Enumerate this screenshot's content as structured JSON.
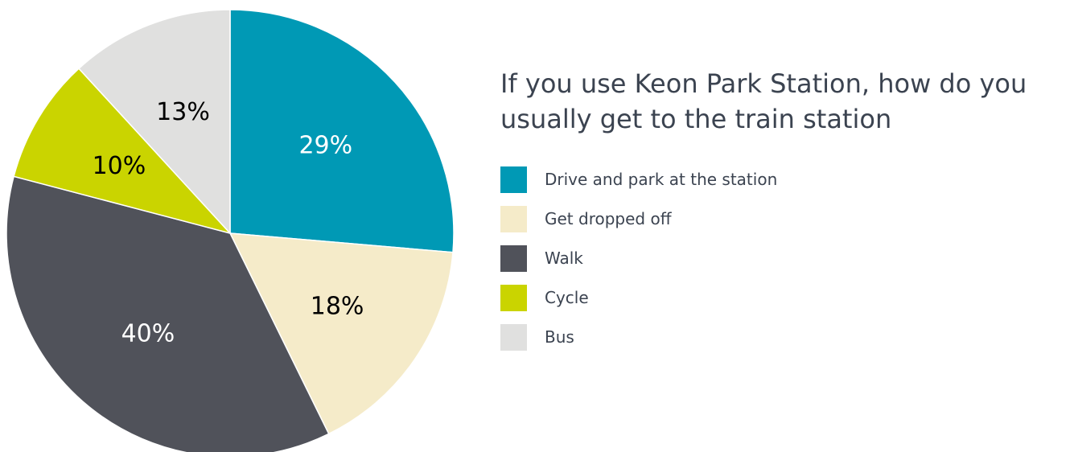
{
  "chart_data": {
    "type": "pie",
    "title": "If you use Keon Park Station, how do you usually get to the train station",
    "categories": [
      "Drive and park at the station",
      "Get dropped off",
      "Walk",
      "Cycle",
      "Bus"
    ],
    "values": [
      29,
      18,
      40,
      10,
      13
    ],
    "labels": [
      "29%",
      "18%",
      "40%",
      "10%",
      "13%"
    ],
    "colors": [
      "#0099b5",
      "#f5ebc9",
      "#50525a",
      "#cad400",
      "#e0e0df"
    ],
    "label_colors": [
      "#ffffff",
      "#000000",
      "#ffffff",
      "#000000",
      "#000000"
    ],
    "start_angle_deg": 0,
    "direction": "clockwise",
    "legend_position": "right"
  }
}
